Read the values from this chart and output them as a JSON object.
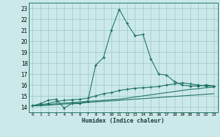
{
  "xlabel": "Humidex (Indice chaleur)",
  "x_ticks": [
    0,
    1,
    2,
    3,
    4,
    5,
    6,
    7,
    8,
    9,
    10,
    11,
    12,
    13,
    14,
    15,
    16,
    17,
    18,
    19,
    20,
    21,
    22,
    23
  ],
  "y_ticks": [
    14,
    15,
    16,
    17,
    18,
    19,
    20,
    21,
    22,
    23
  ],
  "xlim": [
    -0.5,
    23.5
  ],
  "ylim": [
    13.5,
    23.5
  ],
  "background_color": "#cce9e9",
  "line_color": "#1a7060",
  "grid_color": "#a0cccc",
  "lines": [
    {
      "x": [
        0,
        1,
        2,
        3,
        4,
        5,
        6,
        7,
        8,
        9,
        10,
        11,
        12,
        13,
        14,
        15,
        16,
        17,
        18,
        19,
        20,
        21,
        22,
        23
      ],
      "y": [
        14.1,
        14.3,
        14.6,
        14.7,
        13.9,
        14.3,
        14.3,
        14.5,
        17.8,
        18.5,
        21.0,
        22.9,
        21.6,
        20.5,
        20.6,
        18.4,
        17.0,
        16.9,
        16.3,
        16.0,
        15.9,
        15.9,
        16.0,
        15.9
      ],
      "marker": true
    },
    {
      "x": [
        0,
        1,
        2,
        3,
        4,
        5,
        6,
        7,
        8,
        9,
        10,
        11,
        12,
        13,
        14,
        15,
        16,
        17,
        18,
        19,
        20,
        21,
        22,
        23
      ],
      "y": [
        14.1,
        14.2,
        14.3,
        14.5,
        14.6,
        14.65,
        14.7,
        14.8,
        15.0,
        15.2,
        15.3,
        15.5,
        15.6,
        15.7,
        15.75,
        15.8,
        15.85,
        16.0,
        16.1,
        16.2,
        16.1,
        16.0,
        15.9,
        15.9
      ],
      "marker": true
    },
    {
      "x": [
        0,
        1,
        2,
        3,
        4,
        5,
        6,
        7,
        8,
        9,
        10,
        11,
        12,
        13,
        14,
        15,
        16,
        17,
        18,
        19,
        20,
        21,
        22,
        23
      ],
      "y": [
        14.1,
        14.15,
        14.2,
        14.3,
        14.35,
        14.4,
        14.45,
        14.5,
        14.55,
        14.6,
        14.65,
        14.7,
        14.8,
        14.9,
        15.0,
        15.1,
        15.2,
        15.3,
        15.4,
        15.5,
        15.6,
        15.65,
        15.75,
        15.8
      ],
      "marker": false
    },
    {
      "x": [
        0,
        1,
        2,
        3,
        4,
        5,
        6,
        7,
        8,
        9,
        10,
        11,
        12,
        13,
        14,
        15,
        16,
        17,
        18,
        19,
        20,
        21,
        22,
        23
      ],
      "y": [
        14.1,
        14.12,
        14.15,
        14.2,
        14.25,
        14.3,
        14.35,
        14.4,
        14.45,
        14.5,
        14.55,
        14.6,
        14.65,
        14.7,
        14.75,
        14.8,
        14.85,
        14.9,
        14.95,
        15.0,
        15.05,
        15.1,
        15.15,
        15.2
      ],
      "marker": false
    }
  ]
}
